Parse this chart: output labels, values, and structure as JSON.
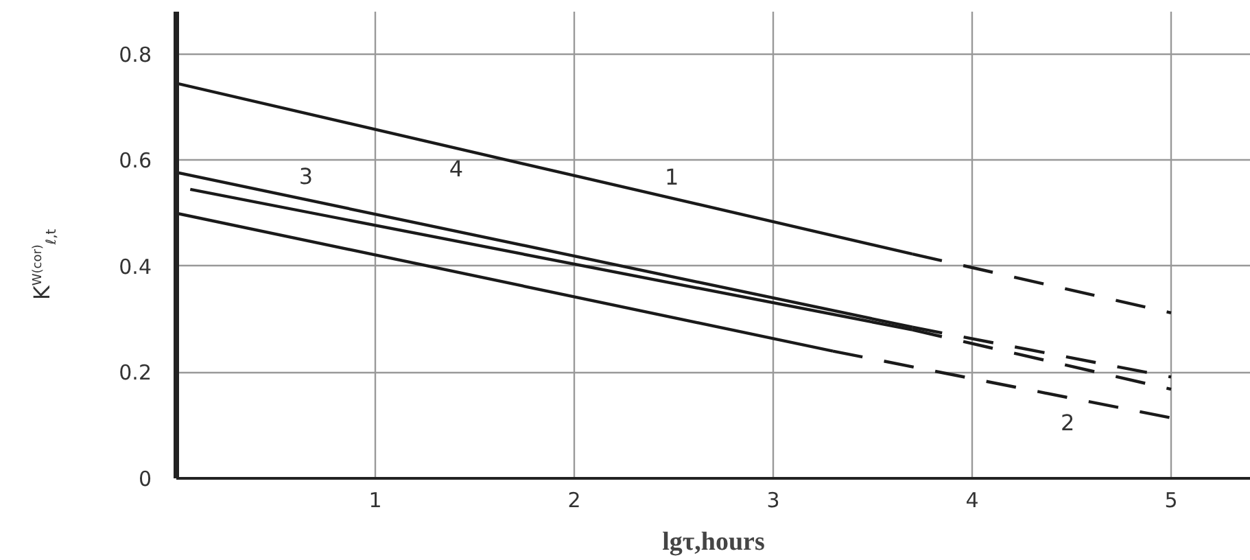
{
  "chart_data": {
    "type": "line",
    "xlabel": "lgτ,hours",
    "ylabel": "K$^{W(cor)}$$_{ℓ,t}$",
    "xlim": [
      0,
      5.4
    ],
    "ylim": [
      0,
      0.88
    ],
    "xticks": [
      1,
      2,
      3,
      4,
      5
    ],
    "yticks": [
      0,
      0.2,
      0.4,
      0.6,
      0.8
    ],
    "grid": true,
    "series": [
      {
        "color": "#1a1a1a",
        "line_style": "solid",
        "x": [
          0,
          3.7
        ],
        "values": [
          0.745,
          0.423
        ]
      },
      {
        "color": "#1a1a1a",
        "line_style": "dashed",
        "x": [
          3.7,
          5
        ],
        "values": [
          0.423,
          0.312
        ]
      },
      {
        "color": "#1a1a1a",
        "line_style": "solid",
        "x": [
          0,
          3.3
        ],
        "values": [
          0.5,
          0.24
        ]
      },
      {
        "color": "#1a1a1a",
        "line_style": "dashed",
        "x": [
          3.3,
          5
        ],
        "values": [
          0.24,
          0.114
        ]
      },
      {
        "color": "#1a1a1a",
        "line_style": "solid",
        "x": [
          0.07,
          3.7
        ],
        "values": [
          0.545,
          0.28
        ]
      },
      {
        "color": "#1a1a1a",
        "line_style": "dashed",
        "x": [
          3.7,
          5
        ],
        "values": [
          0.28,
          0.168
        ]
      },
      {
        "color": "#1a1a1a",
        "line_style": "solid",
        "x": [
          0,
          3.7
        ],
        "values": [
          0.577,
          0.285
        ]
      },
      {
        "color": "#1a1a1a",
        "line_style": "dashed",
        "x": [
          3.7,
          5
        ],
        "values": [
          0.285,
          0.191
        ]
      }
    ],
    "annotations": [
      {
        "text": "1",
        "x": 2.49,
        "y": 0.528
      },
      {
        "text": "2",
        "x": 4.48,
        "y": 0.153
      },
      {
        "text": "3",
        "x": 0.5,
        "y": 0.514
      },
      {
        "text": "4",
        "x": 1.2,
        "y": 0.482
      }
    ]
  }
}
